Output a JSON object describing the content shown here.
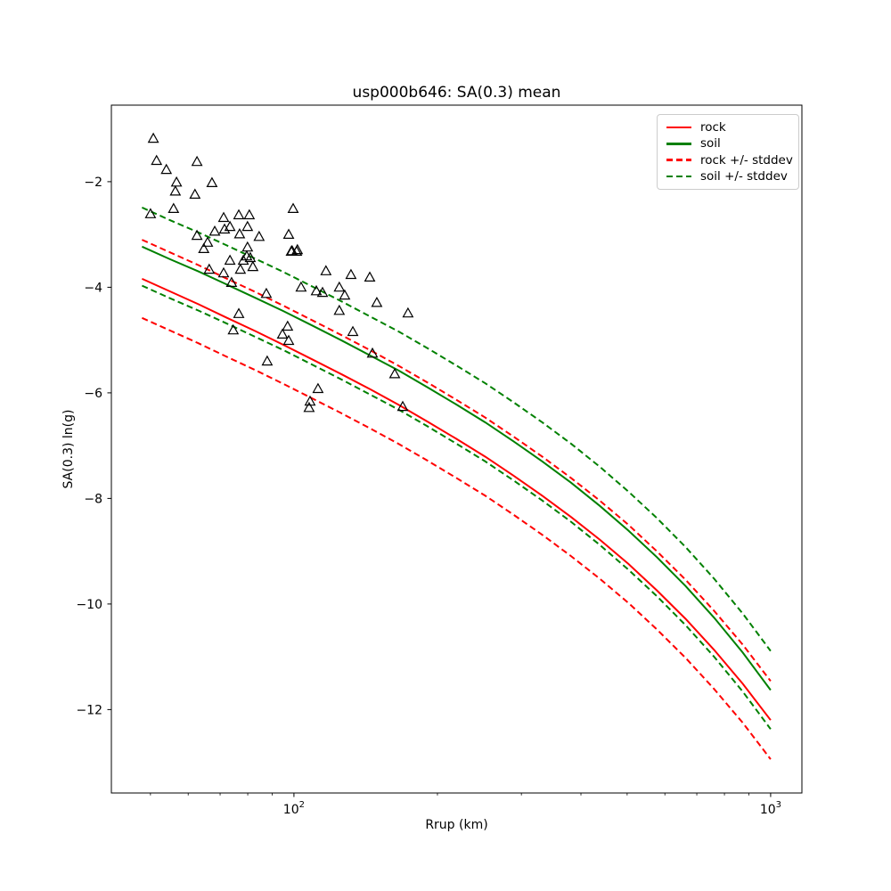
{
  "figure": {
    "title": "usp000b646: SA(0.3) mean",
    "xlabel": "Rrup (km)",
    "ylabel": "SA(0.3) ln(g)"
  },
  "chart_data": {
    "type": "line+scatter",
    "title": "usp000b646: SA(0.3) mean",
    "xlabel": "Rrup (km)",
    "ylabel": "SA(0.3) ln(g)",
    "x_scale": "log",
    "xlim": [
      41.4,
      1163
    ],
    "ylim": [
      -13.58,
      -0.55
    ],
    "grid": false,
    "legend_position": "upper right",
    "x_ticks": [
      {
        "value": 100,
        "label": "10^2"
      },
      {
        "value": 1000,
        "label": "10^3"
      }
    ],
    "x_minor_ticks": [
      50,
      60,
      70,
      80,
      90,
      200,
      300,
      400,
      500,
      600,
      700,
      800,
      900
    ],
    "y_ticks": [
      {
        "value": -2,
        "label": "−2"
      },
      {
        "value": -4,
        "label": "−4"
      },
      {
        "value": -6,
        "label": "−6"
      },
      {
        "value": -8,
        "label": "−8"
      },
      {
        "value": -10,
        "label": "−10"
      },
      {
        "value": -12,
        "label": "−12"
      }
    ],
    "colors": {
      "rock": "#ff0000",
      "soil": "#008000",
      "marker_edge": "#000000"
    },
    "stddev": 0.74,
    "curves": {
      "x": [
        48,
        55,
        63,
        72,
        83,
        95,
        110,
        126,
        145,
        166,
        191,
        219,
        252,
        289,
        332,
        381,
        438,
        503,
        577,
        663,
        761,
        874,
        1000
      ],
      "rock_mean": [
        -3.84,
        -4.08,
        -4.32,
        -4.57,
        -4.83,
        -5.09,
        -5.38,
        -5.65,
        -5.94,
        -6.23,
        -6.55,
        -6.87,
        -7.21,
        -7.57,
        -7.95,
        -8.35,
        -8.78,
        -9.24,
        -9.74,
        -10.28,
        -10.87,
        -11.51,
        -12.2
      ],
      "soil_mean": [
        -3.23,
        -3.47,
        -3.7,
        -3.94,
        -4.2,
        -4.45,
        -4.74,
        -5.01,
        -5.3,
        -5.58,
        -5.9,
        -6.22,
        -6.56,
        -6.92,
        -7.3,
        -7.7,
        -8.14,
        -8.61,
        -9.11,
        -9.66,
        -10.26,
        -10.92,
        -11.63
      ]
    },
    "legend": [
      {
        "label": "rock",
        "color": "#ff0000",
        "dash": false
      },
      {
        "label": "soil",
        "color": "#008000",
        "dash": false
      },
      {
        "label": "rock +/- stddev",
        "color": "#ff0000",
        "dash": true
      },
      {
        "label": "soil +/- stddev",
        "color": "#008000",
        "dash": true
      }
    ],
    "scatter": {
      "marker": "triangle-up",
      "points": [
        [
          50.7,
          -1.19
        ],
        [
          51.5,
          -1.61
        ],
        [
          62.6,
          -1.63
        ],
        [
          54.0,
          -1.78
        ],
        [
          56.7,
          -2.02
        ],
        [
          67.3,
          -2.03
        ],
        [
          56.4,
          -2.19
        ],
        [
          62.0,
          -2.25
        ],
        [
          99.6,
          -2.52
        ],
        [
          55.9,
          -2.52
        ],
        [
          50.0,
          -2.62
        ],
        [
          76.6,
          -2.64
        ],
        [
          80.6,
          -2.64
        ],
        [
          71.2,
          -2.69
        ],
        [
          73.4,
          -2.86
        ],
        [
          79.9,
          -2.86
        ],
        [
          71.5,
          -2.91
        ],
        [
          68.2,
          -2.95
        ],
        [
          76.9,
          -3.0
        ],
        [
          97.5,
          -3.01
        ],
        [
          62.6,
          -3.03
        ],
        [
          84.5,
          -3.05
        ],
        [
          65.9,
          -3.16
        ],
        [
          79.9,
          -3.25
        ],
        [
          64.7,
          -3.28
        ],
        [
          99.1,
          -3.32
        ],
        [
          101.7,
          -3.3
        ],
        [
          98.7,
          -3.33
        ],
        [
          101.3,
          -3.33
        ],
        [
          79.6,
          -3.42
        ],
        [
          81.0,
          -3.45
        ],
        [
          78.3,
          -3.5
        ],
        [
          73.4,
          -3.5
        ],
        [
          82.0,
          -3.62
        ],
        [
          77.2,
          -3.67
        ],
        [
          66.4,
          -3.67
        ],
        [
          116.7,
          -3.7
        ],
        [
          71.2,
          -3.74
        ],
        [
          131.7,
          -3.77
        ],
        [
          144.2,
          -3.82
        ],
        [
          74.0,
          -3.92
        ],
        [
          103.5,
          -4.01
        ],
        [
          124.5,
          -4.01
        ],
        [
          87.5,
          -4.13
        ],
        [
          111.4,
          -4.08
        ],
        [
          114.8,
          -4.11
        ],
        [
          127.8,
          -4.16
        ],
        [
          149.2,
          -4.3
        ],
        [
          124.5,
          -4.45
        ],
        [
          173.5,
          -4.5
        ],
        [
          76.6,
          -4.51
        ],
        [
          97.0,
          -4.75
        ],
        [
          74.6,
          -4.82
        ],
        [
          94.6,
          -4.9
        ],
        [
          97.5,
          -5.02
        ],
        [
          132.9,
          -4.85
        ],
        [
          146.1,
          -5.26
        ],
        [
          87.9,
          -5.41
        ],
        [
          162.7,
          -5.65
        ],
        [
          112.3,
          -5.93
        ],
        [
          108.1,
          -6.17
        ],
        [
          107.6,
          -6.29
        ],
        [
          169.1,
          -6.27
        ]
      ]
    }
  }
}
